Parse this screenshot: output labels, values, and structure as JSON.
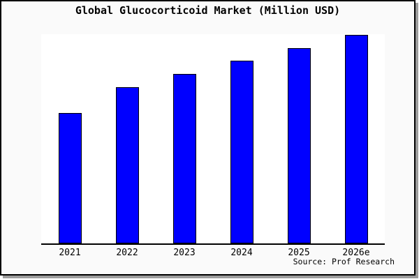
{
  "title": "Global Glucocorticoid Market (Million USD)",
  "source": "Source: Prof Research",
  "colors": {
    "bar_fill": "#0000ff",
    "bar_border": "#000000",
    "canvas_background": "#fafafa",
    "plot_background": "#ffffff",
    "axis": "#000000",
    "frame_border": "#000000",
    "frame_shadow": "#9c9c9c",
    "text": "#000000"
  },
  "chart_data": {
    "type": "bar",
    "title": "Global Glucocorticoid Market (Million USD)",
    "categories": [
      "2021",
      "2022",
      "2023",
      "2024",
      "2025",
      "2026e"
    ],
    "values": [
      62.5,
      74.9,
      81.3,
      87.6,
      93.6,
      100
    ],
    "values_note": "No value axis is shown in the chart; values are estimated from bar heights, normalized so 2026e = 100.",
    "xlabel": "",
    "ylabel": "",
    "ylim": [
      0,
      100
    ],
    "grid": false,
    "legend": false,
    "bar_color": "#0000ff",
    "annotations": [
      "Source: Prof Research"
    ]
  }
}
